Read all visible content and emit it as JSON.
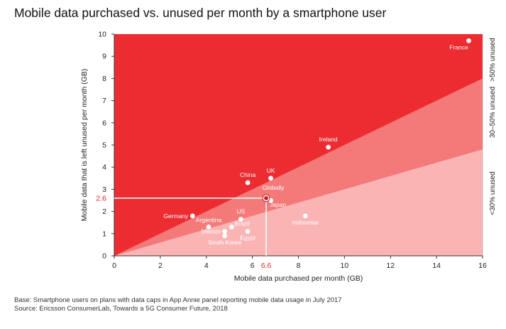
{
  "chart_data": {
    "type": "scatter",
    "title": "Mobile data purchased vs. unused per month by a smartphone user",
    "xlabel": "Mobile data purchased per month (GB)",
    "ylabel": "Mobile data that is left unused per month (GB)",
    "xlim": [
      0,
      16
    ],
    "ylim": [
      0,
      10
    ],
    "xticks": [
      "0",
      "2",
      "4",
      "6",
      "8",
      "10",
      "12",
      "14",
      "16"
    ],
    "yticks": [
      "0",
      "1",
      "2",
      "3",
      "4",
      "5",
      "6",
      "7",
      "8",
      "9",
      "10"
    ],
    "bands": [
      {
        "label": ">50% unused",
        "from_fraction": 0.5,
        "to_fraction": null,
        "color": "#ec2c30"
      },
      {
        "label": "30–50% unused",
        "from_fraction": 0.3,
        "to_fraction": 0.5,
        "color": "#f47a7a"
      },
      {
        "label": "<30% unused",
        "from_fraction": 0,
        "to_fraction": 0.3,
        "color": "#fbb4b4"
      }
    ],
    "points": [
      {
        "label": "France",
        "x": 15.4,
        "y": 9.7
      },
      {
        "label": "Ireland",
        "x": 9.3,
        "y": 4.9
      },
      {
        "label": "UK",
        "x": 6.8,
        "y": 3.5
      },
      {
        "label": "China",
        "x": 5.8,
        "y": 3.3
      },
      {
        "label": "Japan",
        "x": 6.8,
        "y": 2.5
      },
      {
        "label": "Germany",
        "x": 3.4,
        "y": 1.8
      },
      {
        "label": "Argentina",
        "x": 4.1,
        "y": 1.3
      },
      {
        "label": "US",
        "x": 5.5,
        "y": 1.65
      },
      {
        "label": "Brazil",
        "x": 5.1,
        "y": 1.3
      },
      {
        "label": "Mexico",
        "x": 4.8,
        "y": 1.1
      },
      {
        "label": "Egypt",
        "x": 5.8,
        "y": 1.1
      },
      {
        "label": "South Korea",
        "x": 4.8,
        "y": 0.9
      },
      {
        "label": "Indonesia",
        "x": 8.3,
        "y": 1.8
      }
    ],
    "highlight": {
      "label": "Globally",
      "x": 6.6,
      "y": 2.6,
      "x_label": "6.6",
      "y_label": "2.6"
    },
    "colors": {
      "accent": "#e0262b",
      "point": "#ffffff",
      "axis": "#333333"
    }
  },
  "footnotes": {
    "base": "Base: Smartphone users on plans with data caps in App Annie panel reporting mobile data usage in July 2017",
    "source": "Source: Ericsson ConsumerLab, Towards a 5G Consumer Future, 2018"
  }
}
